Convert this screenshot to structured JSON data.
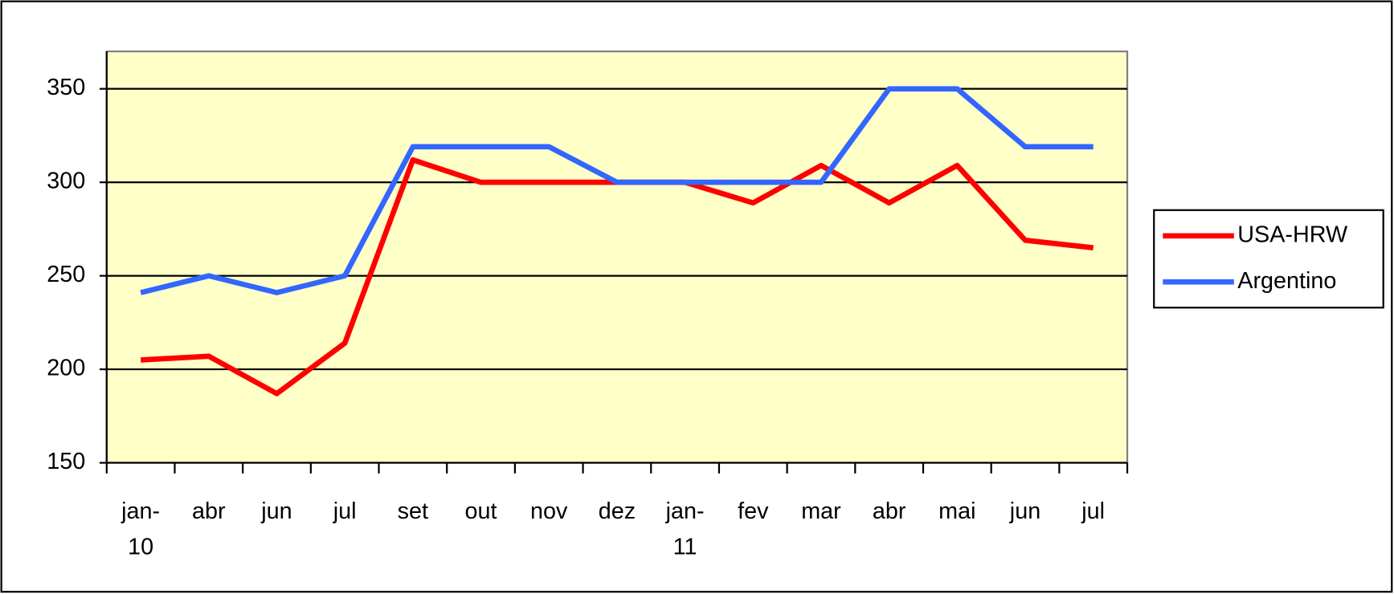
{
  "chart_data": {
    "type": "line",
    "categories": [
      "jan-\n10",
      "abr",
      "jun",
      "jul",
      "set",
      "out",
      "nov",
      "dez",
      "jan-\n11",
      "fev",
      "mar",
      "abr",
      "mai",
      "jun",
      "jul"
    ],
    "series": [
      {
        "name": "USA-HRW",
        "color": "#ff0000",
        "values": [
          205,
          207,
          187,
          214,
          312,
          300,
          300,
          300,
          300,
          289,
          309,
          289,
          309,
          269,
          265
        ]
      },
      {
        "name": "Argentino",
        "color": "#3366ff",
        "values": [
          241,
          250,
          241,
          250,
          319,
          319,
          319,
          300,
          300,
          300,
          300,
          350,
          350,
          319,
          319
        ]
      }
    ],
    "ylim": [
      150,
      370
    ],
    "yticks": [
      150,
      200,
      250,
      300,
      350
    ],
    "grid": true,
    "legend": "right"
  }
}
